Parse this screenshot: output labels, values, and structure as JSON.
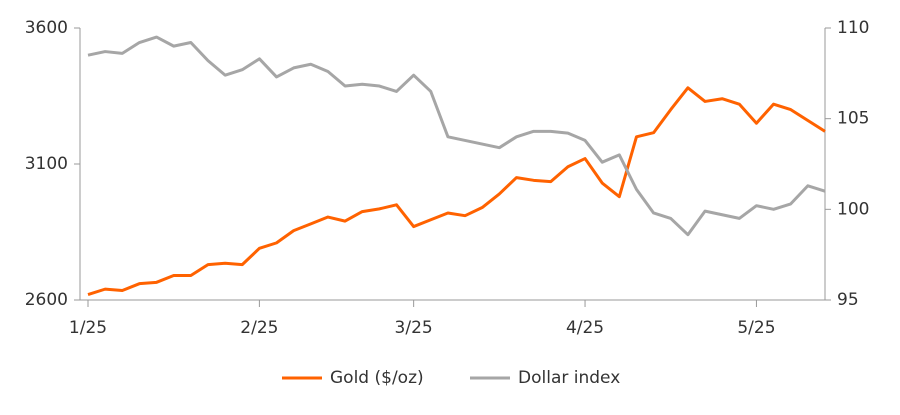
{
  "chart_data": {
    "type": "line",
    "categories": [
      "1/25",
      null,
      null,
      null,
      null,
      null,
      null,
      null,
      null,
      null,
      "2/25",
      null,
      null,
      null,
      null,
      null,
      null,
      null,
      null,
      "3/25",
      null,
      null,
      null,
      null,
      null,
      null,
      null,
      null,
      null,
      "4/25",
      null,
      null,
      null,
      null,
      null,
      null,
      null,
      null,
      null,
      "5/25",
      null,
      null,
      null,
      null
    ],
    "series": [
      {
        "name": "Gold ($/oz)",
        "color": "#ff6200",
        "axis": "y",
        "values": [
          2620,
          2640,
          2635,
          2660,
          2665,
          2690,
          2690,
          2730,
          2735,
          2730,
          2790,
          2810,
          2855,
          2880,
          2905,
          2890,
          2925,
          2935,
          2950,
          2870,
          2895,
          2920,
          2910,
          2940,
          2990,
          3050,
          3040,
          3035,
          3090,
          3120,
          3030,
          2980,
          3200,
          3215,
          3300,
          3380,
          3330,
          3340,
          3320,
          3250,
          3320,
          3300,
          3260,
          3220
        ]
      },
      {
        "name": "Dollar index",
        "color": "#a6a6a6",
        "axis": "y2",
        "values": [
          108.5,
          108.7,
          108.6,
          109.2,
          109.5,
          109.0,
          109.2,
          108.2,
          107.4,
          107.7,
          108.3,
          107.3,
          107.8,
          108.0,
          107.6,
          106.8,
          106.9,
          106.8,
          106.5,
          107.4,
          106.5,
          104.0,
          103.8,
          103.6,
          103.4,
          104.0,
          104.3,
          104.3,
          104.2,
          103.8,
          102.6,
          103.0,
          101.1,
          99.8,
          99.5,
          98.6,
          99.9,
          99.7,
          99.5,
          100.2,
          100.0,
          100.3,
          101.3,
          101.0
        ]
      }
    ],
    "ylim": [
      2600,
      3600
    ],
    "yticks": [
      2600,
      3100,
      3600
    ],
    "y2lim": [
      95,
      110
    ],
    "y2ticks": [
      95,
      100,
      105,
      110
    ],
    "grid": false,
    "legend": "bottom"
  }
}
